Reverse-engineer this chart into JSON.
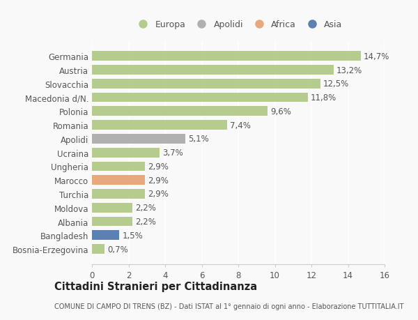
{
  "categories": [
    "Bosnia-Erzegovina",
    "Bangladesh",
    "Albania",
    "Moldova",
    "Turchia",
    "Marocco",
    "Ungheria",
    "Ucraina",
    "Apolidi",
    "Romania",
    "Polonia",
    "Macedonia d/N.",
    "Slovacchia",
    "Austria",
    "Germania"
  ],
  "values": [
    0.7,
    1.5,
    2.2,
    2.2,
    2.9,
    2.9,
    2.9,
    3.7,
    5.1,
    7.4,
    9.6,
    11.8,
    12.5,
    13.2,
    14.7
  ],
  "labels": [
    "0,7%",
    "1,5%",
    "2,2%",
    "2,2%",
    "2,9%",
    "2,9%",
    "2,9%",
    "3,7%",
    "5,1%",
    "7,4%",
    "9,6%",
    "11,8%",
    "12,5%",
    "13,2%",
    "14,7%"
  ],
  "colors": [
    "#b5cc8e",
    "#5b80b2",
    "#b5cc8e",
    "#b5cc8e",
    "#b5cc8e",
    "#e8a87c",
    "#b5cc8e",
    "#b5cc8e",
    "#b0b0b0",
    "#b5cc8e",
    "#b5cc8e",
    "#b5cc8e",
    "#b5cc8e",
    "#b5cc8e",
    "#b5cc8e"
  ],
  "legend_labels": [
    "Europa",
    "Apolidi",
    "Africa",
    "Asia"
  ],
  "legend_colors": [
    "#b5cc8e",
    "#b0b0b0",
    "#e8a87c",
    "#5b80b2"
  ],
  "xlim": [
    0,
    16
  ],
  "xticks": [
    0,
    2,
    4,
    6,
    8,
    10,
    12,
    14,
    16
  ],
  "title": "Cittadini Stranieri per Cittadinanza",
  "subtitle": "COMUNE DI CAMPO DI TRENS (BZ) - Dati ISTAT al 1° gennaio di ogni anno - Elaborazione TUTTITALIA.IT",
  "background_color": "#f9f9f9",
  "bar_height": 0.7,
  "label_fontsize": 8.5,
  "tick_fontsize": 8.5,
  "grid_color": "#ffffff",
  "text_color": "#555555",
  "title_color": "#222222"
}
